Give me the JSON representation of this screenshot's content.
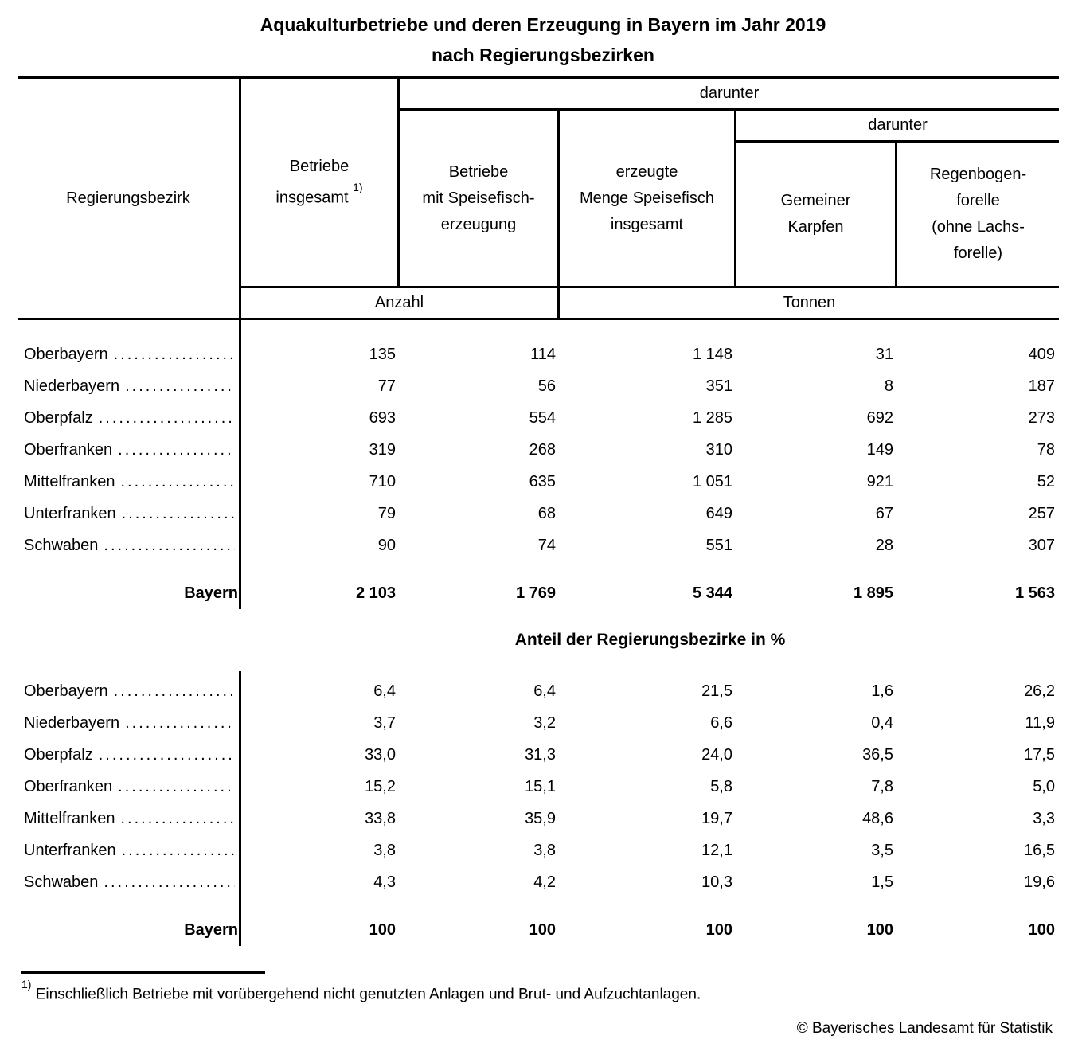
{
  "colors": {
    "text": "#000000",
    "background": "#ffffff",
    "rules": "#000000"
  },
  "title": {
    "line1": "Aquakulturbetriebe und deren Erzeugung in Bayern im Jahr 2019",
    "line2": "nach Regierungsbezirken"
  },
  "header": {
    "regierungsbezirk": "Regierungsbezirk",
    "betriebe_insgesamt": {
      "line1": "Betriebe",
      "line2": "insgesamt"
    },
    "footnote_ref": "1)",
    "darunter": "darunter",
    "betriebe_speisefisch": {
      "lines": [
        "Betriebe",
        "mit Speisefisch-",
        "erzeugung"
      ]
    },
    "erzeugte_menge": {
      "lines": [
        "erzeugte",
        "Menge Speisefisch",
        "insgesamt"
      ]
    },
    "gemeiner_karpfen": {
      "lines": [
        "Gemeiner",
        "Karpfen"
      ]
    },
    "regenbogenforelle": {
      "lines": [
        "Regenbogen-",
        "forelle",
        "(ohne Lachs-",
        "forelle)"
      ]
    },
    "unit_anzahl": "Anzahl",
    "unit_tonnen": "Tonnen"
  },
  "counts": {
    "rows": [
      {
        "label": "Oberbayern",
        "values": [
          "135",
          "114",
          "1 148",
          "31",
          "409"
        ]
      },
      {
        "label": "Niederbayern",
        "values": [
          "77",
          "56",
          "351",
          "8",
          "187"
        ]
      },
      {
        "label": "Oberpfalz",
        "values": [
          "693",
          "554",
          "1 285",
          "692",
          "273"
        ]
      },
      {
        "label": "Oberfranken",
        "values": [
          "319",
          "268",
          "310",
          "149",
          "78"
        ]
      },
      {
        "label": "Mittelfranken",
        "values": [
          "710",
          "635",
          "1 051",
          "921",
          "52"
        ]
      },
      {
        "label": "Unterfranken",
        "values": [
          "79",
          "68",
          "649",
          "67",
          "257"
        ]
      },
      {
        "label": "Schwaben",
        "values": [
          "90",
          "74",
          "551",
          "28",
          "307"
        ]
      }
    ],
    "total": {
      "label": "Bayern",
      "values": [
        "2 103",
        "1 769",
        "5 344",
        "1 895",
        "1 563"
      ]
    }
  },
  "percent": {
    "heading": "Anteil der Regierungsbezirke in %",
    "rows": [
      {
        "label": "Oberbayern",
        "values": [
          "6,4",
          "6,4",
          "21,5",
          "1,6",
          "26,2"
        ]
      },
      {
        "label": "Niederbayern",
        "values": [
          "3,7",
          "3,2",
          "6,6",
          "0,4",
          "11,9"
        ]
      },
      {
        "label": "Oberpfalz",
        "values": [
          "33,0",
          "31,3",
          "24,0",
          "36,5",
          "17,5"
        ]
      },
      {
        "label": "Oberfranken",
        "values": [
          "15,2",
          "15,1",
          "5,8",
          "7,8",
          "5,0"
        ]
      },
      {
        "label": "Mittelfranken",
        "values": [
          "33,8",
          "35,9",
          "19,7",
          "48,6",
          "3,3"
        ]
      },
      {
        "label": "Unterfranken",
        "values": [
          "3,8",
          "3,8",
          "12,1",
          "3,5",
          "16,5"
        ]
      },
      {
        "label": "Schwaben",
        "values": [
          "4,3",
          "4,2",
          "10,3",
          "1,5",
          "19,6"
        ]
      }
    ],
    "total": {
      "label": "Bayern",
      "values": [
        "100",
        "100",
        "100",
        "100",
        "100"
      ]
    }
  },
  "footnote": {
    "ref": "1)",
    "text": "Einschließlich Betriebe mit vorübergehend nicht genutzten Anlagen und Brut- und Aufzuchtanlagen."
  },
  "copyright": "© Bayerisches Landesamt für Statistik",
  "leader_dots": "......................................................................"
}
